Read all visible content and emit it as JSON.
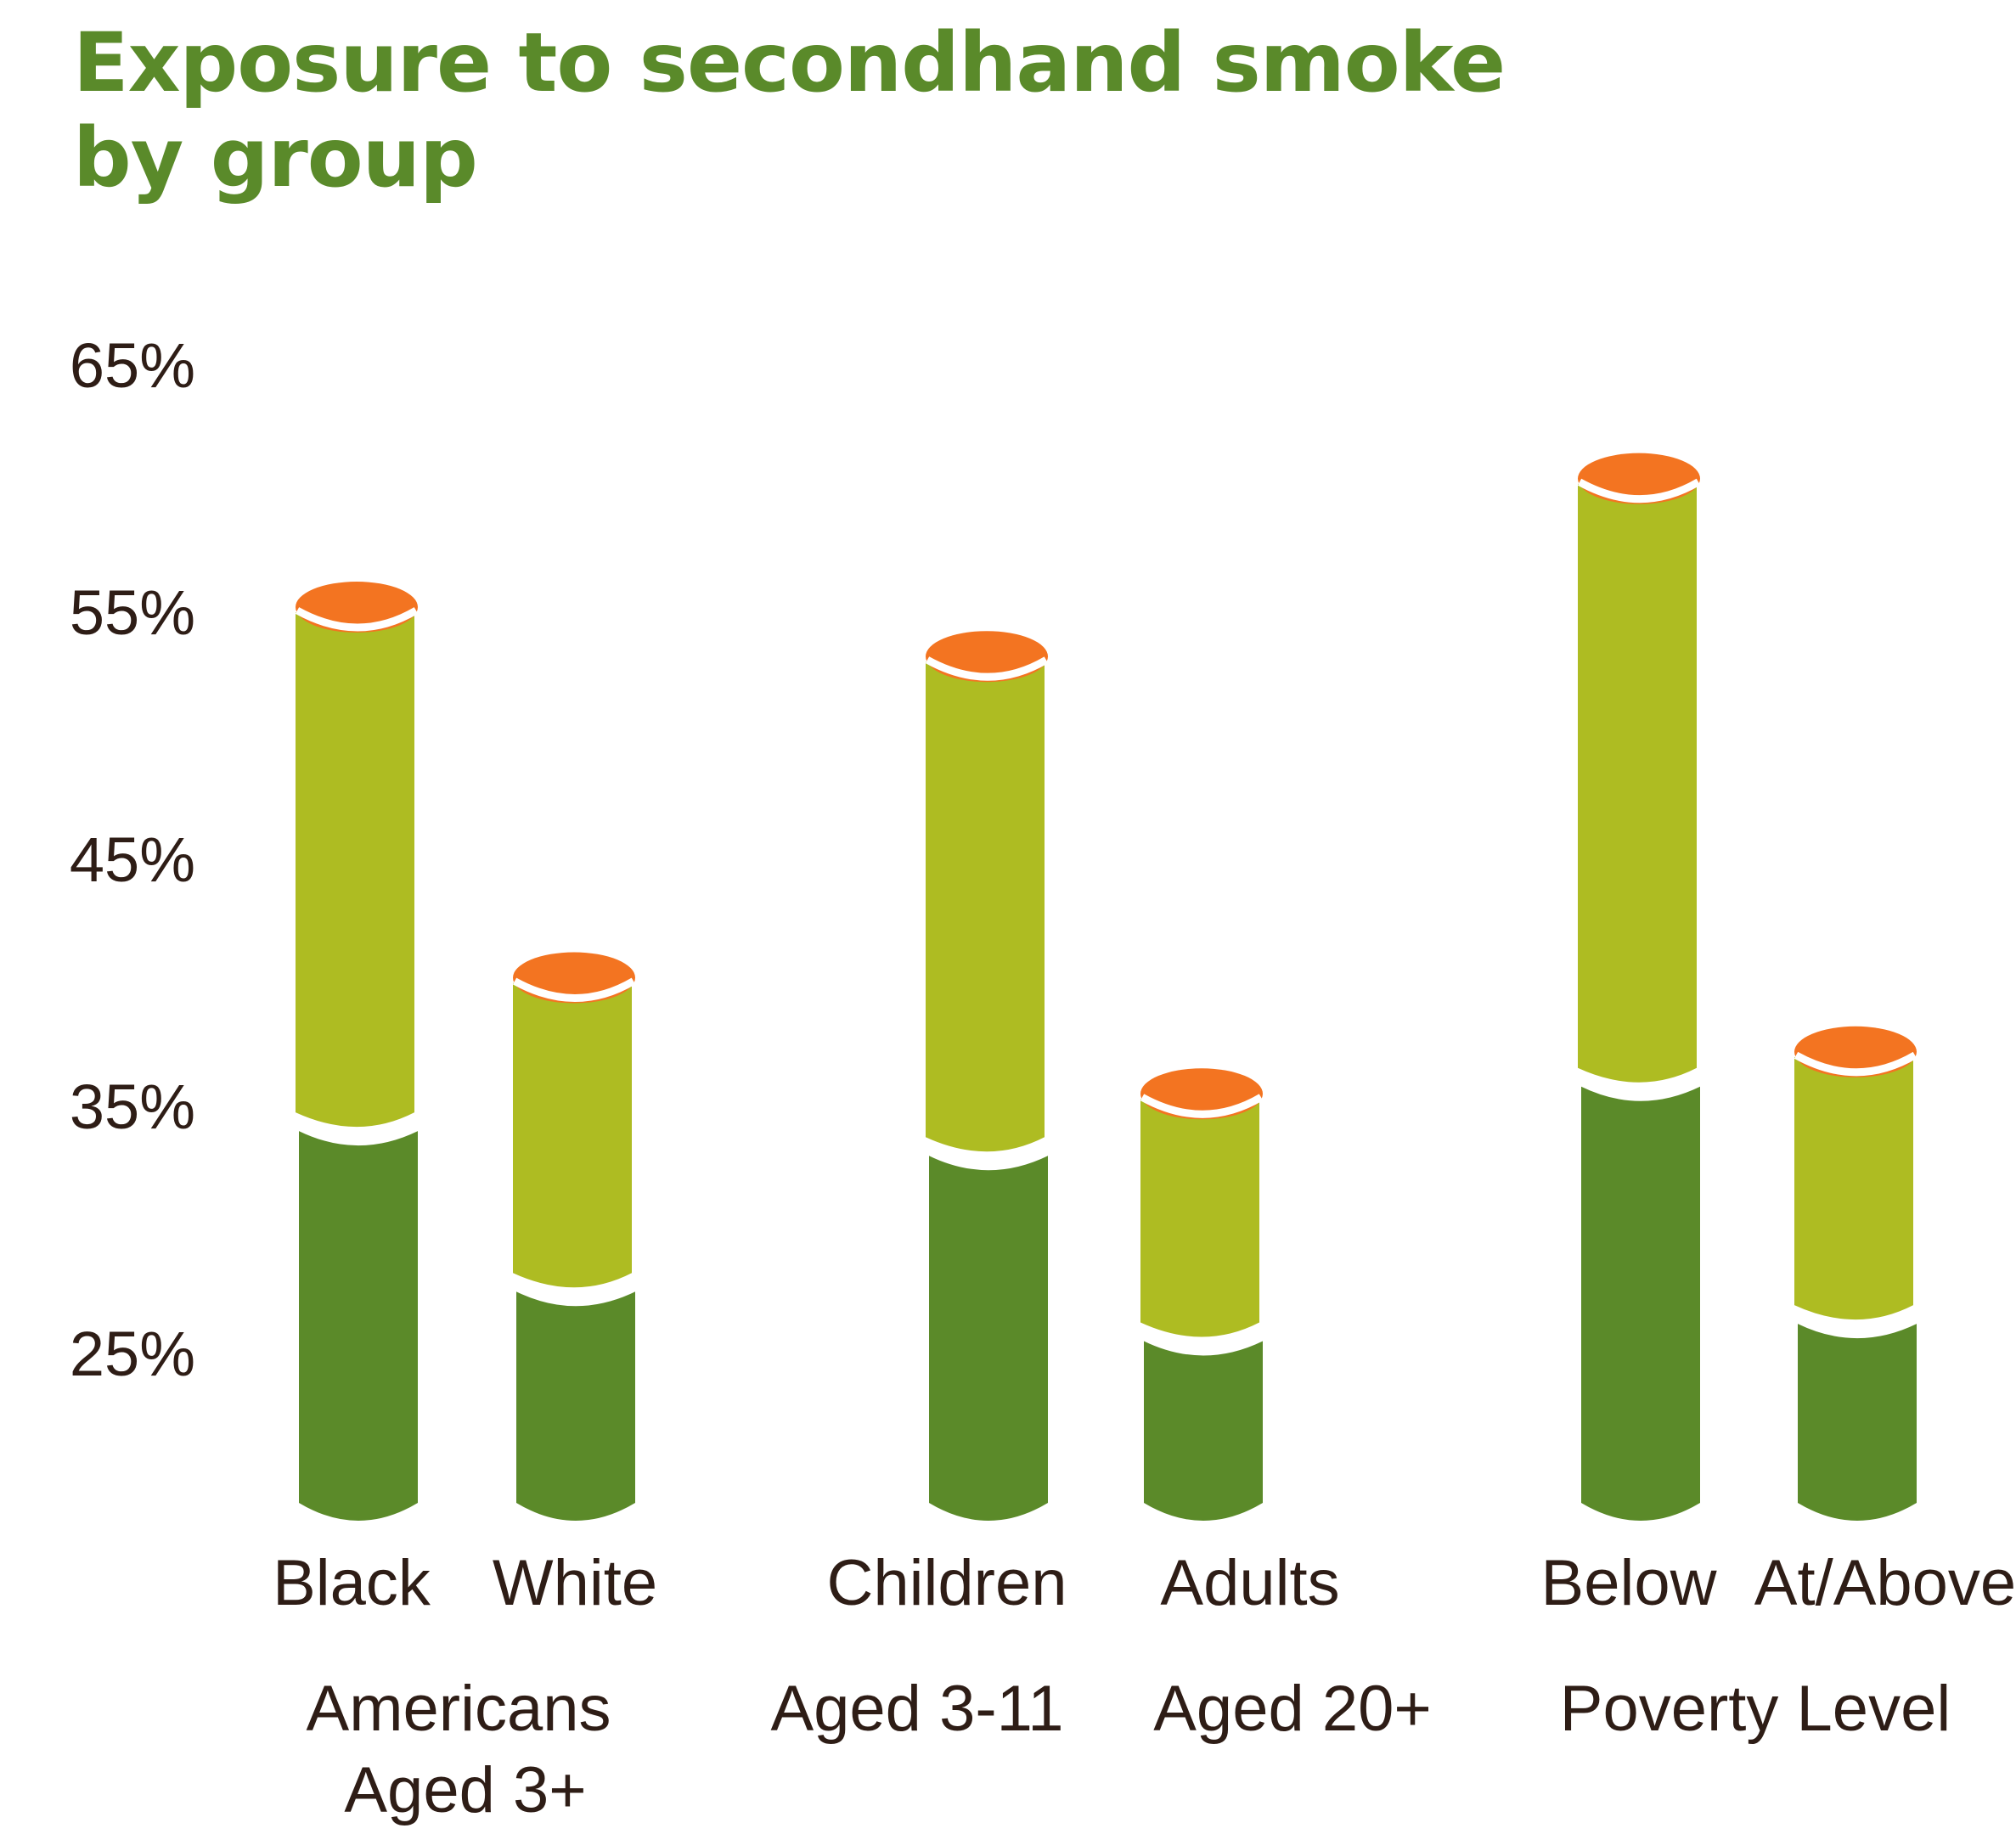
{
  "chart_data": {
    "type": "bar",
    "stacked": true,
    "title": [
      "Exposure to secondhand smoke",
      "by group"
    ],
    "yticks": [
      "65%",
      "55%",
      "45%",
      "35%",
      "25%"
    ],
    "ylim": [
      20,
      65
    ],
    "bars": [
      {
        "label": "Black",
        "group": 0,
        "lower": 34.0,
        "total": 55.0
      },
      {
        "label": "White",
        "group": 0,
        "lower": 27.5,
        "total": 40.0
      },
      {
        "label": "Children",
        "group": 1,
        "lower": 33.0,
        "total": 53.0
      },
      {
        "label": "Adults",
        "group": 1,
        "lower": 25.5,
        "total": 35.3
      },
      {
        "label": "Below",
        "group": 2,
        "lower": 35.8,
        "total": 60.2
      },
      {
        "label": "At/Above",
        "group": 2,
        "lower": 26.2,
        "total": 37.0
      }
    ],
    "group_labels": [
      [
        "Americans",
        "Aged 3+"
      ],
      [
        "Aged 3-11",
        "Aged 20+"
      ],
      [
        "Poverty Level"
      ]
    ],
    "colors": {
      "lower": "#5b8a29",
      "upper": "#aebc22",
      "cap": "#f37421",
      "title": "#5a8a2a",
      "text": "#2e1d16"
    }
  }
}
